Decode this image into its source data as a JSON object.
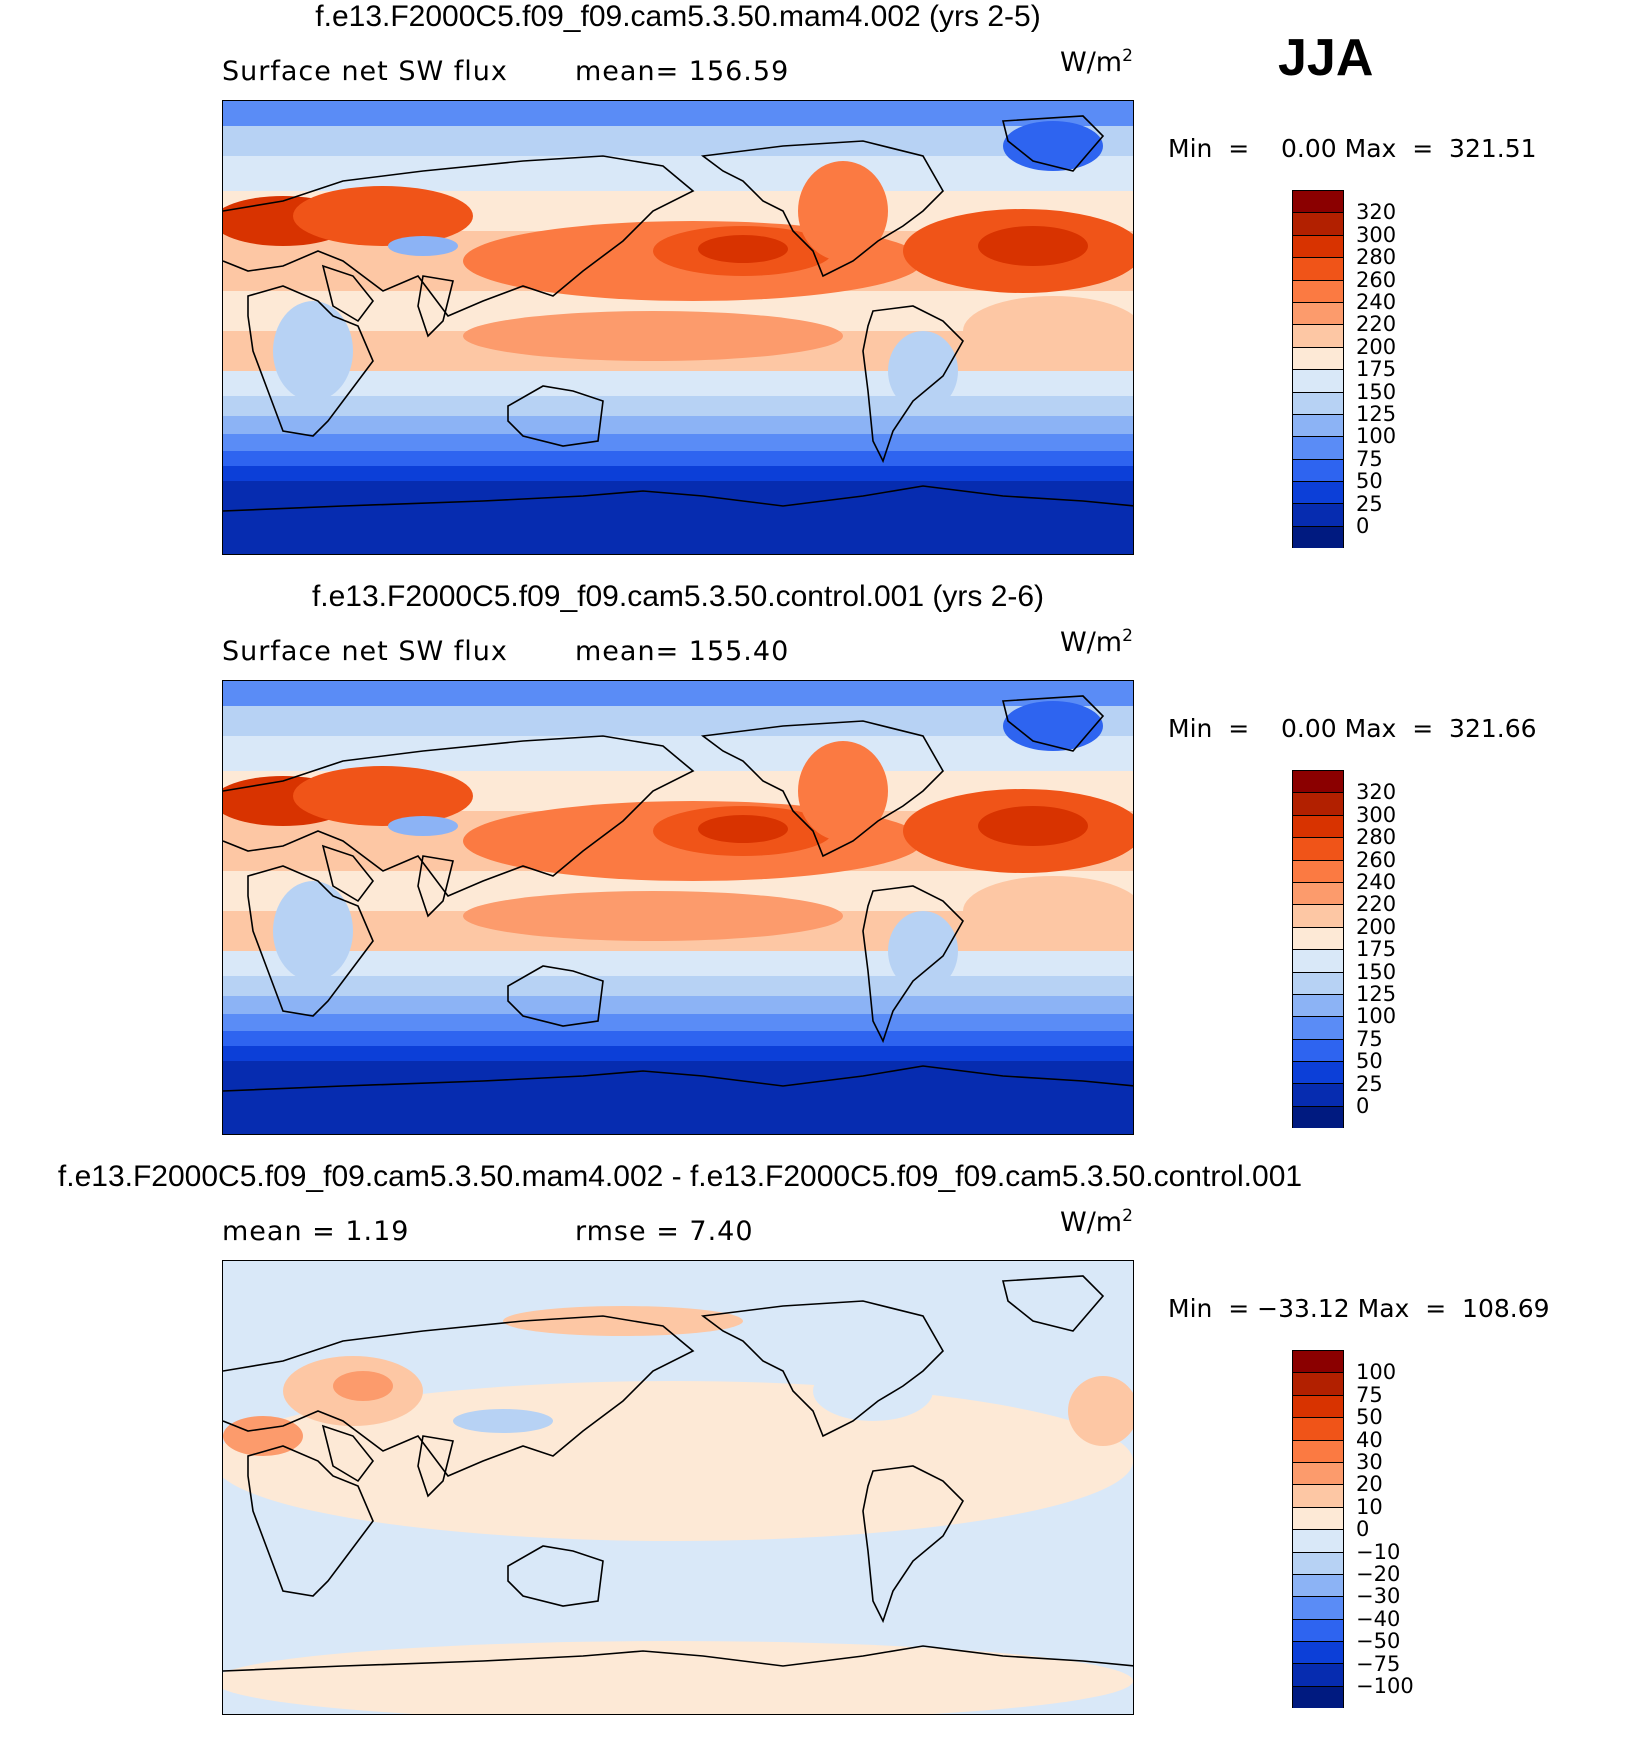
{
  "season": "JJA",
  "units": "W/m",
  "units_sup": "2",
  "panels": [
    {
      "title": "f.e13.F2000C5.f09_f09.cam5.3.50.mam4.002 (yrs 2-5)",
      "left_label": "Surface net SW flux",
      "right_label": "mean=  156.59",
      "min_text": "Min  =",
      "min_val": "0.00",
      "max_text": "Max  =  321.51",
      "levels": [
        "320",
        "300",
        "280",
        "260",
        "240",
        "220",
        "200",
        "175",
        "150",
        "125",
        "100",
        "75",
        "50",
        "25",
        "0"
      ],
      "colors": [
        "#8b0000",
        "#b22000",
        "#d83300",
        "#f05418",
        "#fb7a42",
        "#fc9b6c",
        "#fdc7a4",
        "#fde9d6",
        "#d9e8f8",
        "#b7d2f4",
        "#8cb3f5",
        "#5a8cf6",
        "#2e64f0",
        "#0c3fd8",
        "#062cb0",
        "#001a80"
      ]
    },
    {
      "title": "f.e13.F2000C5.f09_f09.cam5.3.50.control.001 (yrs 2-6)",
      "left_label": "Surface net SW flux",
      "right_label": "mean=  155.40",
      "min_text": "Min  =",
      "min_val": "0.00",
      "max_text": "Max  =  321.66",
      "levels": [
        "320",
        "300",
        "280",
        "260",
        "240",
        "220",
        "200",
        "175",
        "150",
        "125",
        "100",
        "75",
        "50",
        "25",
        "0"
      ],
      "colors": [
        "#8b0000",
        "#b22000",
        "#d83300",
        "#f05418",
        "#fb7a42",
        "#fc9b6c",
        "#fdc7a4",
        "#fde9d6",
        "#d9e8f8",
        "#b7d2f4",
        "#8cb3f5",
        "#5a8cf6",
        "#2e64f0",
        "#0c3fd8",
        "#062cb0",
        "#001a80"
      ]
    },
    {
      "title": "f.e13.F2000C5.f09_f09.cam5.3.50.mam4.002 - f.e13.F2000C5.f09_f09.cam5.3.50.control.001",
      "left_label": "mean  =      1.19",
      "right_label": "rmse  =      7.40",
      "min_text": "Min  =",
      "min_val": "−33.12",
      "max_text": "Max  =  108.69",
      "levels": [
        "100",
        "75",
        "50",
        "40",
        "30",
        "20",
        "10",
        "0",
        "−10",
        "−20",
        "−30",
        "−40",
        "−50",
        "−75",
        "−100"
      ],
      "colors": [
        "#8b0000",
        "#b22000",
        "#d83300",
        "#f05418",
        "#fb7a42",
        "#fc9b6c",
        "#fdc7a4",
        "#fde9d6",
        "#d9e8f8",
        "#b7d2f4",
        "#8cb3f5",
        "#5a8cf6",
        "#2e64f0",
        "#0c3fd8",
        "#062cb0",
        "#001a80"
      ]
    }
  ]
}
